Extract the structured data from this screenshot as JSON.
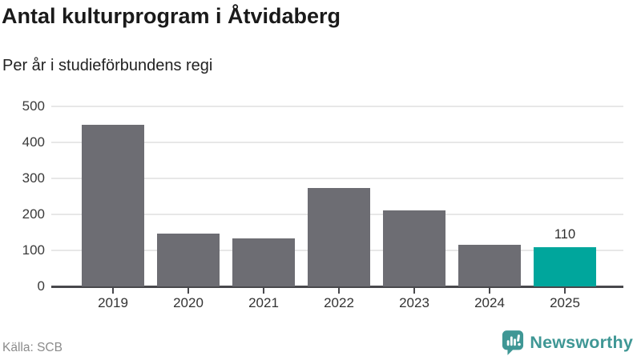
{
  "title": "Antal kulturprogram i Åtvidaberg",
  "subtitle": "Per år i studieförbundens regi",
  "source": "Källa: SCB",
  "brand": {
    "name": "Newsworthy",
    "logo_icon": "bar-chart-speech-bubble-icon",
    "color": "#3f9795"
  },
  "colors": {
    "bar_default": "#6d6d73",
    "bar_highlight": "#00a69c",
    "grid": "#e7e7e7",
    "axis": "#48484c",
    "tick_text": "#3a3a3a",
    "title_text": "#1a1a1a",
    "muted_text": "#8b8b8b"
  },
  "chart_data": {
    "type": "bar",
    "title": "Antal kulturprogram i Åtvidaberg",
    "subtitle": "Per år i studieförbundens regi",
    "categories": [
      "2019",
      "2020",
      "2021",
      "2022",
      "2023",
      "2024",
      "2025"
    ],
    "values": [
      450,
      147,
      133,
      273,
      211,
      116,
      110
    ],
    "highlight_index": 6,
    "data_labels": {
      "6": "110"
    },
    "xlabel": "",
    "ylabel": "",
    "ylim": [
      0,
      500
    ],
    "yticks": [
      0,
      100,
      200,
      300,
      400,
      500
    ],
    "grid": "horizontal",
    "legend": "none"
  }
}
